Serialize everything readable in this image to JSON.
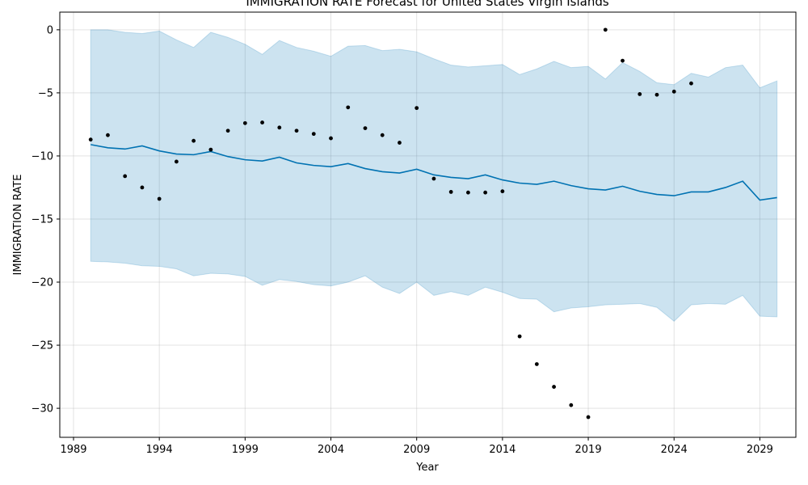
{
  "chart_data": {
    "type": "line",
    "title": "IMMIGRATION RATE Forecast for United States Virgin Islands",
    "xlabel": "Year",
    "ylabel": "IMMIGRATION RATE",
    "xlim": [
      1988.2,
      2031.1
    ],
    "ylim": [
      -32.3,
      1.4
    ],
    "xticks": [
      1989,
      1994,
      1999,
      2004,
      2009,
      2014,
      2019,
      2024,
      2029
    ],
    "xtick_labels": [
      "1989",
      "1994",
      "1999",
      "2004",
      "2009",
      "2014",
      "2019",
      "2024",
      "2029"
    ],
    "yticks": [
      0,
      -5,
      -10,
      -15,
      -20,
      -25,
      -30
    ],
    "ytick_labels": [
      "0",
      "−5",
      "−10",
      "−15",
      "−20",
      "−25",
      "−30"
    ],
    "grid": true,
    "colors": {
      "forecast": "#0072B2",
      "band_fill": "#0072B2",
      "observed": "#000000"
    },
    "forecast": {
      "x": [
        1990,
        1991,
        1992,
        1993,
        1994,
        1995,
        1996,
        1997,
        1998,
        1999,
        2000,
        2001,
        2002,
        2003,
        2004,
        2005,
        2006,
        2007,
        2008,
        2009,
        2010,
        2011,
        2012,
        2013,
        2014,
        2015,
        2016,
        2017,
        2018,
        2019,
        2020,
        2021,
        2022,
        2023,
        2024,
        2025,
        2026,
        2027,
        2028,
        2029,
        2030
      ],
      "y": [
        -9.1,
        -9.35,
        -9.45,
        -9.2,
        -9.6,
        -9.85,
        -9.9,
        -9.65,
        -10.05,
        -10.3,
        -10.4,
        -10.1,
        -10.55,
        -10.75,
        -10.85,
        -10.6,
        -11.0,
        -11.25,
        -11.35,
        -11.05,
        -11.5,
        -11.7,
        -11.8,
        -11.5,
        -11.9,
        -12.15,
        -12.25,
        -12.0,
        -12.35,
        -12.6,
        -12.7,
        -12.4,
        -12.8,
        -13.05,
        -13.15,
        -12.85,
        -12.85,
        -12.5,
        -12.0,
        -13.5,
        -13.3
      ],
      "upper": [
        0.0,
        0.0,
        -0.2,
        -0.3,
        -0.1,
        -0.8,
        -1.4,
        -0.2,
        -0.6,
        -1.15,
        -1.95,
        -0.85,
        -1.4,
        -1.7,
        -2.1,
        -1.3,
        -1.25,
        -1.65,
        -1.55,
        -1.75,
        -2.3,
        -2.8,
        -2.95,
        -2.85,
        -2.75,
        -3.55,
        -3.1,
        -2.5,
        -3.0,
        -2.9,
        -3.9,
        -2.6,
        -3.3,
        -4.2,
        -4.35,
        -3.45,
        -3.75,
        -3.0,
        -2.8,
        -4.6,
        -4.05
      ],
      "lower": [
        -18.35,
        -18.4,
        -18.5,
        -18.7,
        -18.75,
        -18.95,
        -19.5,
        -19.3,
        -19.35,
        -19.55,
        -20.25,
        -19.8,
        -19.95,
        -20.2,
        -20.3,
        -20.0,
        -19.5,
        -20.4,
        -20.9,
        -20.0,
        -21.05,
        -20.75,
        -21.05,
        -20.4,
        -20.8,
        -21.3,
        -21.35,
        -22.35,
        -22.05,
        -21.95,
        -21.8,
        -21.75,
        -21.7,
        -22.0,
        -23.1,
        -21.8,
        -21.7,
        -21.75,
        -21.05,
        -22.7,
        -22.75
      ]
    },
    "observed": {
      "x": [
        1990,
        1991,
        1992,
        1993,
        1994,
        1995,
        1996,
        1997,
        1998,
        1999,
        2000,
        2001,
        2002,
        2003,
        2004,
        2005,
        2006,
        2007,
        2008,
        2009,
        2010,
        2011,
        2012,
        2013,
        2014,
        2015,
        2016,
        2017,
        2018,
        2019,
        2020,
        2021,
        2022,
        2023,
        2024,
        2025
      ],
      "y": [
        -8.7,
        -8.35,
        -11.6,
        -12.5,
        -13.4,
        -10.45,
        -8.8,
        -9.5,
        -8.0,
        -7.4,
        -7.35,
        -7.75,
        -8.0,
        -8.25,
        -8.6,
        -6.15,
        -7.8,
        -8.35,
        -8.95,
        -6.2,
        -11.8,
        -12.85,
        -12.9,
        -12.9,
        -12.8,
        -24.3,
        -26.5,
        -28.3,
        -29.75,
        -30.7,
        0.0,
        -2.45,
        -5.1,
        -5.15,
        -4.9,
        -4.25
      ]
    }
  }
}
